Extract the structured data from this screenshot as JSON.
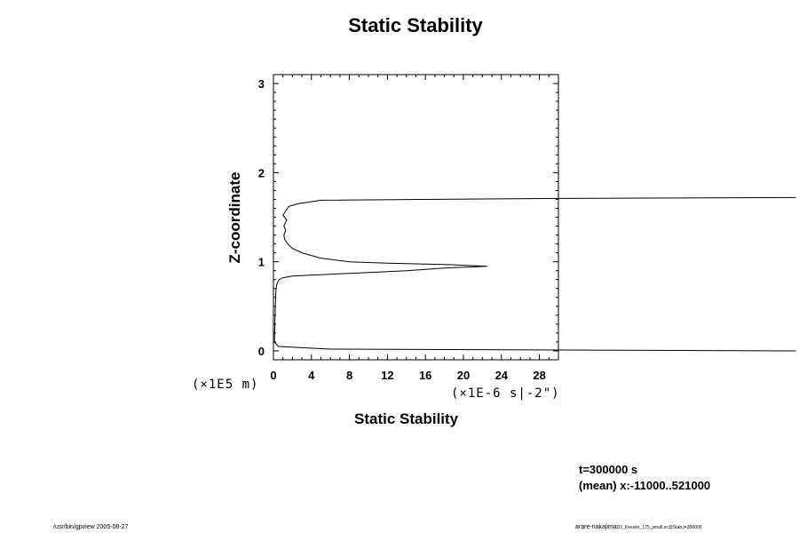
{
  "chart_data": {
    "type": "line",
    "title": "Static Stability",
    "xlabel": "Static Stability",
    "ylabel": "Z-coordinate",
    "x_unit": "(×1E-6 s|-2\")",
    "y_unit": "(×1E5 m)",
    "xlim": [
      0,
      30
    ],
    "ylim": [
      -0.1,
      3.1
    ],
    "xticks": [
      0,
      4,
      8,
      12,
      16,
      20,
      24,
      28
    ],
    "yticks": [
      0,
      1,
      2,
      3
    ],
    "xtick_labels": [
      "0",
      "4",
      "8",
      "12",
      "16",
      "20",
      "24",
      "28"
    ],
    "ytick_labels": [
      "0",
      "1",
      "2",
      "3"
    ],
    "grid": false,
    "series": [
      {
        "x": [
          55,
          30,
          6,
          0.5,
          0.1,
          0.15,
          0.2,
          0.25,
          0.3,
          0.4,
          0.6,
          1.0,
          2.0,
          4.0,
          8.0,
          14.0,
          18.0,
          22.5,
          18.0,
          12.0,
          8.0,
          5.0,
          3.0,
          2.0,
          1.5,
          1.2,
          1.1,
          1.3,
          1.1,
          1.4,
          1.0,
          1.3,
          1.6,
          2.5,
          5.0,
          30.0,
          55.0
        ],
        "y": [
          0.0,
          0.01,
          0.02,
          0.05,
          0.1,
          0.3,
          0.5,
          0.65,
          0.72,
          0.76,
          0.8,
          0.82,
          0.84,
          0.85,
          0.87,
          0.9,
          0.93,
          0.95,
          0.97,
          0.985,
          1.0,
          1.04,
          1.1,
          1.15,
          1.2,
          1.25,
          1.3,
          1.35,
          1.4,
          1.47,
          1.52,
          1.57,
          1.62,
          1.65,
          1.69,
          1.71,
          1.72
        ]
      }
    ]
  },
  "footer": {
    "time": "t=300000 s",
    "mean": "(mean) x:-11000..521000",
    "left_note": "/usr/bin/gpview 2005-08-27",
    "right_note": "arare-nakajima",
    "right_note_small": "D3_Kessler_175_small.nc@Stab,t=300000"
  }
}
